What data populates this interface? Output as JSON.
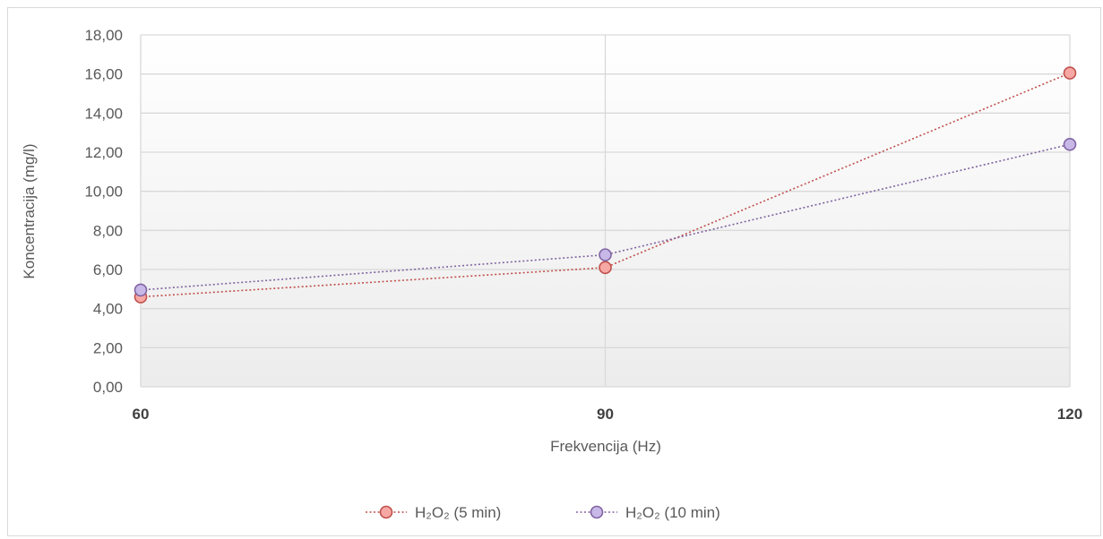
{
  "chart_data": {
    "type": "line",
    "title": "",
    "xlabel": "Frekvencija (Hz)",
    "ylabel": "Koncentracija (mg/l)",
    "categories": [
      "60",
      "90",
      "120"
    ],
    "ylim": [
      0,
      18
    ],
    "yticks": [
      "0,00",
      "2,00",
      "4,00",
      "6,00",
      "8,00",
      "10,00",
      "12,00",
      "14,00",
      "16,00",
      "18,00"
    ],
    "grid": true,
    "legend_position": "bottom",
    "series": [
      {
        "name": "H₂O₂ (5 min)",
        "values": [
          4.6,
          6.1,
          16.05
        ],
        "color": "#c0504d",
        "fill": "#f7a8a4"
      },
      {
        "name": "H₂O₂ (10 min)",
        "values": [
          4.95,
          6.75,
          12.4
        ],
        "color": "#8064a2",
        "fill": "#c8b8e8"
      }
    ]
  }
}
